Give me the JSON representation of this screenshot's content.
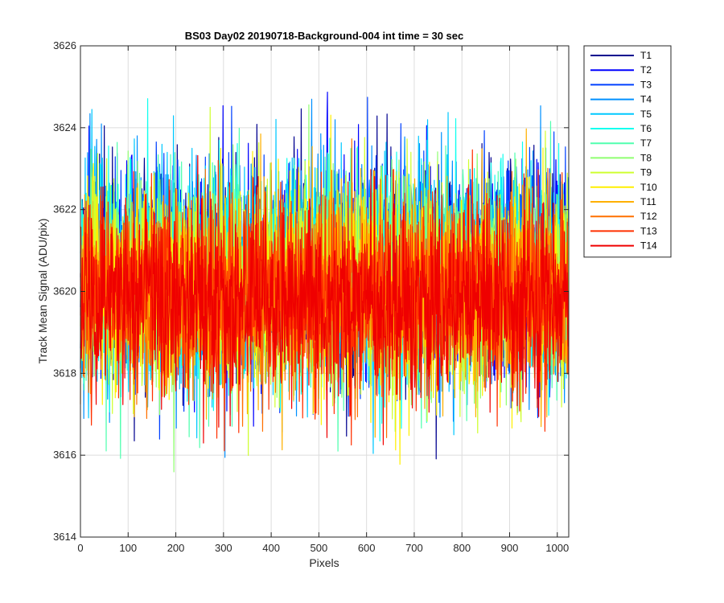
{
  "chart_data": {
    "type": "line",
    "title": "BS03 Day02 20190718-Background-004 int time = 30 sec",
    "xlabel": "Pixels",
    "ylabel": "Track Mean Signal (ADU/pix)",
    "xlim": [
      0,
      1024
    ],
    "ylim": [
      3614,
      3626
    ],
    "xticks": [
      0,
      100,
      200,
      300,
      400,
      500,
      600,
      700,
      800,
      900,
      1000
    ],
    "yticks": [
      3614,
      3616,
      3618,
      3620,
      3622,
      3624,
      3626
    ],
    "grid": true,
    "legend_position": "outside-top-right",
    "n_points": 1024,
    "series": [
      {
        "name": "T1",
        "color": "#00008f",
        "mean": 3620.6,
        "noise": 1.25
      },
      {
        "name": "T2",
        "color": "#0000ff",
        "mean": 3620.6,
        "noise": 1.25
      },
      {
        "name": "T3",
        "color": "#0040ff",
        "mean": 3620.5,
        "noise": 1.25
      },
      {
        "name": "T4",
        "color": "#0090ff",
        "mean": 3620.4,
        "noise": 1.3
      },
      {
        "name": "T5",
        "color": "#00c8ff",
        "mean": 3620.3,
        "noise": 1.3
      },
      {
        "name": "T6",
        "color": "#10ffef",
        "mean": 3620.3,
        "noise": 1.3
      },
      {
        "name": "T7",
        "color": "#50ffaf",
        "mean": 3620.3,
        "noise": 1.25
      },
      {
        "name": "T8",
        "color": "#8fff70",
        "mean": 3620.2,
        "noise": 1.25
      },
      {
        "name": "T9",
        "color": "#cfff30",
        "mean": 3620.2,
        "noise": 1.25
      },
      {
        "name": "T10",
        "color": "#ffef00",
        "mean": 3620.0,
        "noise": 1.3
      },
      {
        "name": "T11",
        "color": "#ffb000",
        "mean": 3620.0,
        "noise": 1.2
      },
      {
        "name": "T12",
        "color": "#ff7000",
        "mean": 3619.9,
        "noise": 1.15
      },
      {
        "name": "T13",
        "color": "#ff3000",
        "mean": 3619.9,
        "noise": 1.15
      },
      {
        "name": "T14",
        "color": "#ef0000",
        "mean": 3619.8,
        "noise": 1.15
      }
    ]
  }
}
